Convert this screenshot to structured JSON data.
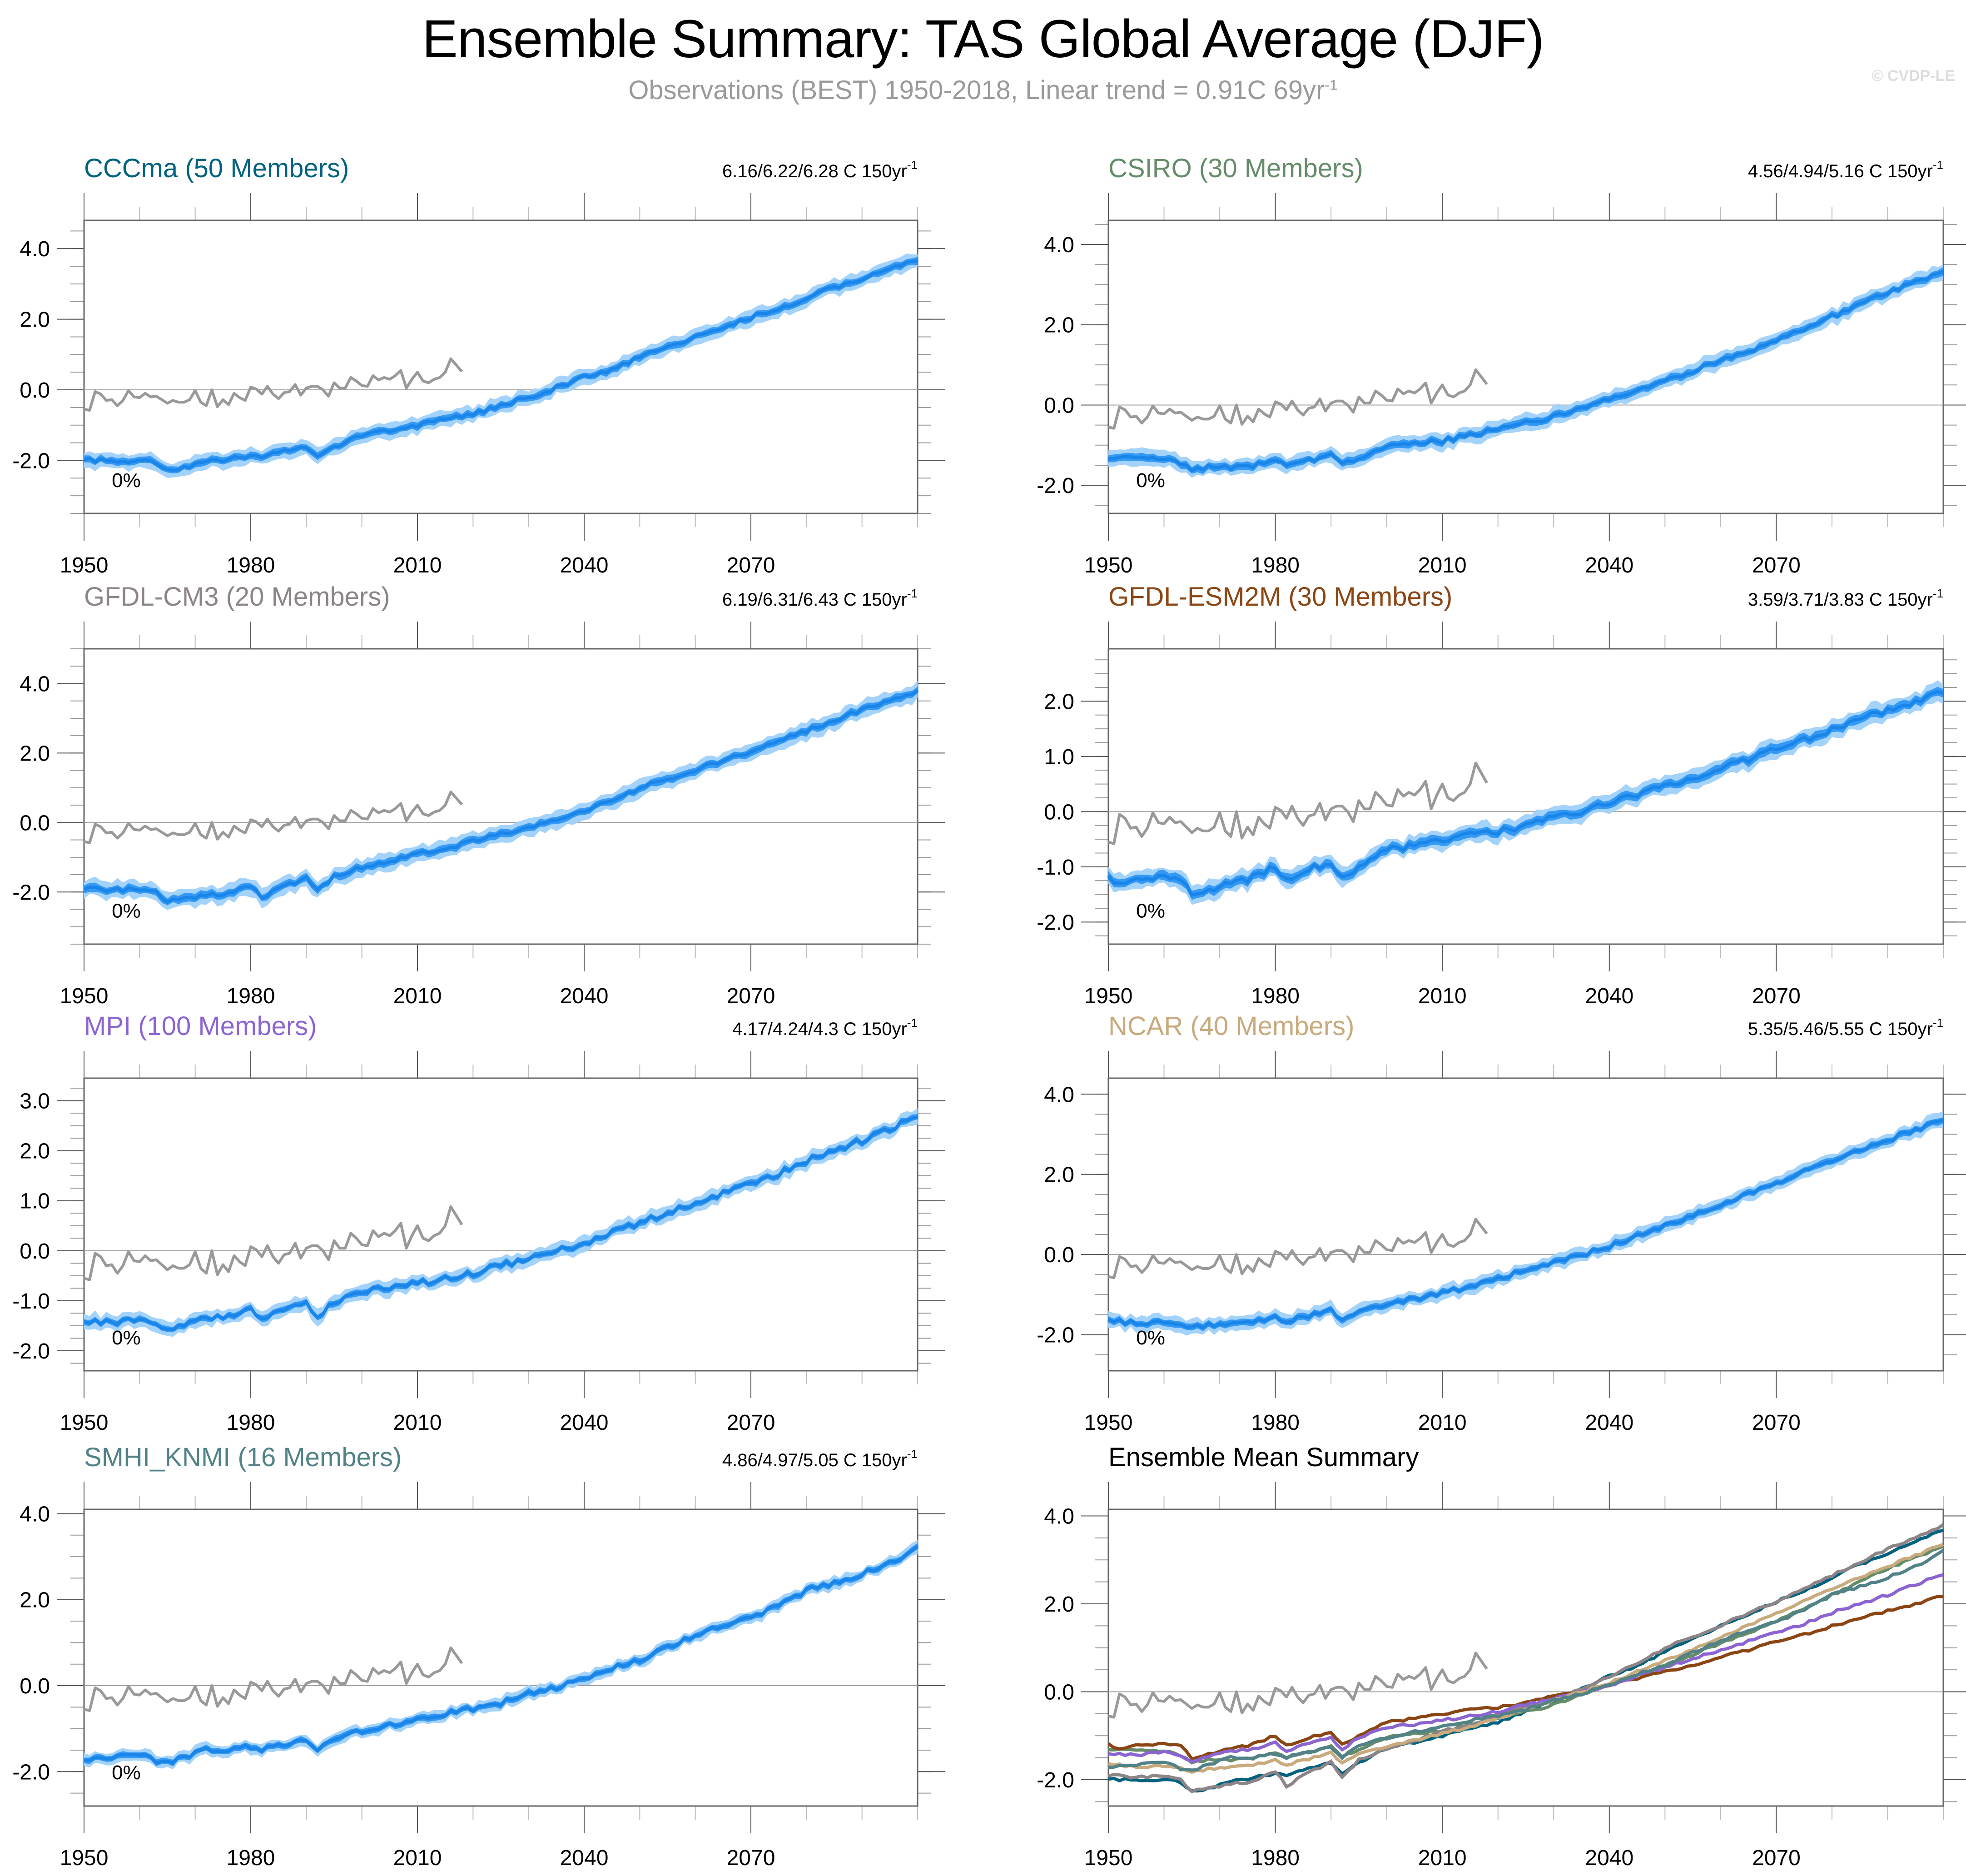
{
  "title": "Ensemble Summary: TAS Global Average (DJF)",
  "subtitle": {
    "text": "Observations (BEST) 1950-2018, Linear trend = 0.91C 69yr",
    "superscript": "-1"
  },
  "watermark": "© CVDP-LE",
  "colors": {
    "band_outer": "#a3d2fb",
    "band_inner": "#3399f5",
    "mean_line": "#1a85e8",
    "obs_line": "#999999",
    "zero_line": "#a0a0a0",
    "axis": "#666666"
  },
  "chart_data": [
    {
      "type": "line",
      "panel": "CCCma",
      "title": "CCCma (50 Members)",
      "title_color": "#00627e",
      "trend_label": "6.16/6.22/6.28 C 150yr",
      "trend_sup": "-1",
      "percent_label": "0%",
      "xlim": [
        1950,
        2100
      ],
      "ylim": [
        -3.5,
        4.8
      ],
      "yticks": [
        -2.0,
        0.0,
        2.0,
        4.0
      ],
      "ytick_labels": [
        "-2.0",
        "0.0",
        "2.0",
        "4.0"
      ],
      "xticks": [
        1950,
        1980,
        2010,
        2040,
        2070
      ],
      "xtick_labels": [
        "1950",
        "1980",
        "2010",
        "2040",
        "2070"
      ],
      "band_outer_halfwidth": 0.22,
      "band_inner_halfwidth": 0.1,
      "mean": {
        "x": [
          1950,
          1955,
          1960,
          1963,
          1965,
          1968,
          1972,
          1976,
          1980,
          1982,
          1985,
          1990,
          1992,
          1995,
          2000,
          2005,
          2010,
          2015,
          2020,
          2025,
          2030,
          2035,
          2040,
          2045,
          2050,
          2055,
          2060,
          2065,
          2070,
          2075,
          2080,
          2085,
          2090,
          2095,
          2100
        ],
        "y": [
          -2.0,
          -2.0,
          -2.0,
          -2.05,
          -2.25,
          -2.2,
          -2.05,
          -1.95,
          -1.85,
          -1.9,
          -1.8,
          -1.6,
          -1.85,
          -1.6,
          -1.3,
          -1.15,
          -1.0,
          -0.85,
          -0.7,
          -0.45,
          -0.2,
          0.05,
          0.35,
          0.6,
          0.9,
          1.2,
          1.5,
          1.75,
          2.05,
          2.3,
          2.6,
          2.9,
          3.15,
          3.4,
          3.7
        ]
      }
    },
    {
      "type": "line",
      "panel": "CSIRO",
      "title": "CSIRO (30 Members)",
      "title_color": "#648c69",
      "trend_label": "4.56/4.94/5.16 C 150yr",
      "trend_sup": "-1",
      "percent_label": "0%",
      "xlim": [
        1950,
        2100
      ],
      "ylim": [
        -2.7,
        4.6
      ],
      "yticks": [
        -2.0,
        0.0,
        2.0,
        4.0
      ],
      "ytick_labels": [
        "-2.0",
        "0.0",
        "2.0",
        "4.0"
      ],
      "xticks": [
        1950,
        1980,
        2010,
        2040,
        2070
      ],
      "xtick_labels": [
        "1950",
        "1980",
        "2010",
        "2040",
        "2070"
      ],
      "band_outer_halfwidth": 0.2,
      "band_inner_halfwidth": 0.09,
      "mean": {
        "x": [
          1950,
          1955,
          1960,
          1963,
          1965,
          1968,
          1972,
          1976,
          1980,
          1982,
          1985,
          1990,
          1992,
          1995,
          2000,
          2005,
          2010,
          2015,
          2020,
          2025,
          2030,
          2035,
          2040,
          2045,
          2050,
          2055,
          2060,
          2065,
          2070,
          2075,
          2080,
          2085,
          2090,
          2095,
          2100
        ],
        "y": [
          -1.3,
          -1.35,
          -1.35,
          -1.45,
          -1.6,
          -1.55,
          -1.55,
          -1.5,
          -1.4,
          -1.5,
          -1.4,
          -1.25,
          -1.5,
          -1.3,
          -1.05,
          -0.95,
          -0.9,
          -0.75,
          -0.6,
          -0.45,
          -0.3,
          -0.05,
          0.15,
          0.4,
          0.6,
          0.85,
          1.1,
          1.35,
          1.6,
          1.9,
          2.2,
          2.5,
          2.8,
          3.05,
          3.3
        ]
      }
    },
    {
      "type": "line",
      "panel": "GFDL-CM3",
      "title": "GFDL-CM3 (20 Members)",
      "title_color": "#8c8487",
      "trend_label": "6.19/6.31/6.43 C 150yr",
      "trend_sup": "-1",
      "percent_label": "0%",
      "xlim": [
        1950,
        2100
      ],
      "ylim": [
        -3.5,
        5.0
      ],
      "yticks": [
        -2.0,
        0.0,
        2.0,
        4.0
      ],
      "ytick_labels": [
        "-2.0",
        "0.0",
        "2.0",
        "4.0"
      ],
      "xticks": [
        1950,
        1980,
        2010,
        2040,
        2070
      ],
      "xtick_labels": [
        "1950",
        "1980",
        "2010",
        "2040",
        "2070"
      ],
      "band_outer_halfwidth": 0.25,
      "band_inner_halfwidth": 0.11,
      "mean": {
        "x": [
          1950,
          1955,
          1960,
          1963,
          1965,
          1968,
          1972,
          1976,
          1980,
          1982,
          1985,
          1990,
          1992,
          1995,
          2000,
          2005,
          2010,
          2015,
          2020,
          2025,
          2030,
          2035,
          2040,
          2045,
          2050,
          2055,
          2060,
          2065,
          2070,
          2075,
          2080,
          2085,
          2090,
          2095,
          2100
        ],
        "y": [
          -1.9,
          -1.95,
          -1.9,
          -2.0,
          -2.25,
          -2.2,
          -2.1,
          -2.05,
          -1.8,
          -2.15,
          -1.9,
          -1.6,
          -1.95,
          -1.55,
          -1.3,
          -1.1,
          -0.9,
          -0.75,
          -0.55,
          -0.35,
          -0.15,
          0.05,
          0.35,
          0.65,
          1.0,
          1.25,
          1.5,
          1.8,
          2.05,
          2.35,
          2.65,
          2.95,
          3.25,
          3.5,
          3.8
        ]
      }
    },
    {
      "type": "line",
      "panel": "GFDL-ESM2M",
      "title": "GFDL-ESM2M (30 Members)",
      "title_color": "#8b4513",
      "trend_label": "3.59/3.71/3.83 C 150yr",
      "trend_sup": "-1",
      "percent_label": "0%",
      "xlim": [
        1950,
        2100
      ],
      "ylim": [
        -2.4,
        2.95
      ],
      "yticks": [
        -2.0,
        -1.0,
        0.0,
        1.0,
        2.0
      ],
      "ytick_labels": [
        "-2.0",
        "-1.0",
        "0.0",
        "1.0",
        "2.0"
      ],
      "xticks": [
        1950,
        1980,
        2010,
        2040,
        2070
      ],
      "xtick_labels": [
        "1950",
        "1980",
        "2010",
        "2040",
        "2070"
      ],
      "band_outer_halfwidth": 0.17,
      "band_inner_halfwidth": 0.08,
      "mean": {
        "x": [
          1950,
          1952,
          1955,
          1960,
          1963,
          1965,
          1968,
          1972,
          1976,
          1980,
          1982,
          1985,
          1990,
          1992,
          1995,
          2000,
          2005,
          2010,
          2015,
          2020,
          2025,
          2030,
          2035,
          2040,
          2045,
          2050,
          2055,
          2060,
          2065,
          2070,
          2075,
          2080,
          2085,
          2090,
          2095,
          2100
        ],
        "y": [
          -1.2,
          -1.3,
          -1.2,
          -1.2,
          -1.2,
          -1.55,
          -1.4,
          -1.3,
          -1.2,
          -1.0,
          -1.2,
          -1.1,
          -0.9,
          -1.2,
          -1.0,
          -0.7,
          -0.6,
          -0.5,
          -0.4,
          -0.35,
          -0.25,
          -0.1,
          0.0,
          0.15,
          0.3,
          0.45,
          0.6,
          0.8,
          0.95,
          1.15,
          1.3,
          1.5,
          1.65,
          1.85,
          2.0,
          2.2
        ]
      }
    },
    {
      "type": "line",
      "panel": "MPI",
      "title": "MPI (100 Members)",
      "title_color": "#8c64d2",
      "trend_label": "4.17/4.24/4.3 C 150yr",
      "trend_sup": "-1",
      "percent_label": "0%",
      "xlim": [
        1950,
        2100
      ],
      "ylim": [
        -2.4,
        3.45
      ],
      "yticks": [
        -2.0,
        -1.0,
        0.0,
        1.0,
        2.0,
        3.0
      ],
      "ytick_labels": [
        "-2.0",
        "-1.0",
        "0.0",
        "1.0",
        "2.0",
        "3.0"
      ],
      "xticks": [
        1950,
        1980,
        2010,
        2040,
        2070
      ],
      "xtick_labels": [
        "1950",
        "1980",
        "2010",
        "2040",
        "2070"
      ],
      "band_outer_halfwidth": 0.15,
      "band_inner_halfwidth": 0.06,
      "mean": {
        "x": [
          1950,
          1955,
          1960,
          1963,
          1965,
          1968,
          1972,
          1976,
          1980,
          1982,
          1985,
          1990,
          1992,
          1995,
          2000,
          2005,
          2010,
          2015,
          2020,
          2025,
          2030,
          2035,
          2040,
          2045,
          2050,
          2055,
          2060,
          2065,
          2070,
          2075,
          2080,
          2085,
          2090,
          2095,
          2100
        ],
        "y": [
          -1.4,
          -1.45,
          -1.35,
          -1.45,
          -1.6,
          -1.45,
          -1.35,
          -1.3,
          -1.15,
          -1.35,
          -1.2,
          -1.05,
          -1.3,
          -1.05,
          -0.8,
          -0.75,
          -0.65,
          -0.55,
          -0.45,
          -0.3,
          -0.15,
          0.0,
          0.15,
          0.35,
          0.55,
          0.75,
          0.95,
          1.15,
          1.35,
          1.55,
          1.8,
          2.0,
          2.2,
          2.45,
          2.65
        ]
      }
    },
    {
      "type": "line",
      "panel": "NCAR",
      "title": "NCAR (40 Members)",
      "title_color": "#c8aa7d",
      "trend_label": "5.35/5.46/5.55 C 150yr",
      "trend_sup": "-1",
      "percent_label": "0%",
      "xlim": [
        1950,
        2100
      ],
      "ylim": [
        -2.9,
        4.4
      ],
      "yticks": [
        -2.0,
        0.0,
        2.0,
        4.0
      ],
      "ytick_labels": [
        "-2.0",
        "0.0",
        "2.0",
        "4.0"
      ],
      "xticks": [
        1950,
        1980,
        2010,
        2040,
        2070
      ],
      "xtick_labels": [
        "1950",
        "1980",
        "2010",
        "2040",
        "2070"
      ],
      "band_outer_halfwidth": 0.18,
      "band_inner_halfwidth": 0.08,
      "mean": {
        "x": [
          1950,
          1955,
          1960,
          1963,
          1965,
          1968,
          1972,
          1976,
          1980,
          1982,
          1985,
          1990,
          1992,
          1995,
          2000,
          2005,
          2010,
          2015,
          2020,
          2025,
          2030,
          2035,
          2040,
          2045,
          2050,
          2055,
          2060,
          2065,
          2070,
          2075,
          2080,
          2085,
          2090,
          2095,
          2100
        ],
        "y": [
          -1.65,
          -1.7,
          -1.7,
          -1.7,
          -1.85,
          -1.75,
          -1.7,
          -1.65,
          -1.55,
          -1.65,
          -1.55,
          -1.4,
          -1.6,
          -1.4,
          -1.25,
          -1.1,
          -0.95,
          -0.8,
          -0.6,
          -0.4,
          -0.2,
          0.0,
          0.2,
          0.45,
          0.7,
          0.95,
          1.25,
          1.5,
          1.8,
          2.05,
          2.35,
          2.6,
          2.85,
          3.1,
          3.35
        ]
      }
    },
    {
      "type": "line",
      "panel": "SMHI_KNMI",
      "title": "SMHI_KNMI (16 Members)",
      "title_color": "#508287",
      "trend_label": "4.86/4.97/5.05 C 150yr",
      "trend_sup": "-1",
      "percent_label": "0%",
      "xlim": [
        1950,
        2100
      ],
      "ylim": [
        -2.8,
        4.1
      ],
      "yticks": [
        -2.0,
        0.0,
        2.0,
        4.0
      ],
      "ytick_labels": [
        "-2.0",
        "0.0",
        "2.0",
        "4.0"
      ],
      "xticks": [
        1950,
        1980,
        2010,
        2040,
        2070
      ],
      "xtick_labels": [
        "1950",
        "1980",
        "2010",
        "2040",
        "2070"
      ],
      "band_outer_halfwidth": 0.14,
      "band_inner_halfwidth": 0.07,
      "mean": {
        "x": [
          1950,
          1955,
          1960,
          1963,
          1965,
          1968,
          1972,
          1976,
          1980,
          1982,
          1985,
          1990,
          1992,
          1995,
          2000,
          2005,
          2010,
          2015,
          2020,
          2025,
          2030,
          2035,
          2040,
          2045,
          2050,
          2055,
          2060,
          2065,
          2070,
          2075,
          2080,
          2085,
          2090,
          2095,
          2100
        ],
        "y": [
          -1.7,
          -1.65,
          -1.6,
          -1.75,
          -1.8,
          -1.65,
          -1.5,
          -1.5,
          -1.4,
          -1.5,
          -1.4,
          -1.25,
          -1.5,
          -1.2,
          -1.05,
          -0.9,
          -0.8,
          -0.65,
          -0.55,
          -0.4,
          -0.2,
          -0.05,
          0.15,
          0.4,
          0.6,
          0.9,
          1.15,
          1.4,
          1.6,
          1.85,
          2.2,
          2.4,
          2.6,
          2.85,
          3.2
        ]
      }
    },
    {
      "type": "line",
      "panel": "Ensemble Mean Summary",
      "title": "Ensemble Mean Summary",
      "title_color": "#000000",
      "xlim": [
        1950,
        2100
      ],
      "ylim": [
        -2.6,
        4.15
      ],
      "yticks": [
        -2.0,
        0.0,
        2.0,
        4.0
      ],
      "ytick_labels": [
        "-2.0",
        "0.0",
        "2.0",
        "4.0"
      ],
      "xticks": [
        1950,
        1980,
        2010,
        2040,
        2070
      ],
      "xtick_labels": [
        "1950",
        "1980",
        "2010",
        "2040",
        "2070"
      ],
      "summary_series": [
        "CCCma",
        "CSIRO",
        "GFDL-CM3",
        "GFDL-ESM2M",
        "MPI",
        "NCAR",
        "SMHI_KNMI"
      ]
    }
  ],
  "observations": {
    "name": "Observations (BEST)",
    "x": [
      1950,
      1951,
      1952,
      1953,
      1954,
      1955,
      1956,
      1957,
      1958,
      1959,
      1960,
      1961,
      1962,
      1963,
      1964,
      1965,
      1966,
      1967,
      1968,
      1969,
      1970,
      1971,
      1972,
      1973,
      1974,
      1975,
      1976,
      1977,
      1978,
      1979,
      1980,
      1981,
      1982,
      1983,
      1984,
      1985,
      1986,
      1987,
      1988,
      1989,
      1990,
      1991,
      1992,
      1993,
      1994,
      1995,
      1996,
      1997,
      1998,
      1999,
      2000,
      2001,
      2002,
      2003,
      2004,
      2005,
      2006,
      2007,
      2008,
      2009,
      2010,
      2011,
      2012,
      2013,
      2014,
      2015,
      2016,
      2017,
      2018
    ],
    "y": [
      -0.55,
      -0.58,
      -0.05,
      -0.12,
      -0.3,
      -0.28,
      -0.45,
      -0.3,
      -0.02,
      -0.2,
      -0.22,
      -0.1,
      -0.2,
      -0.18,
      -0.28,
      -0.38,
      -0.3,
      -0.35,
      -0.35,
      -0.28,
      -0.02,
      -0.35,
      -0.45,
      0.0,
      -0.48,
      -0.28,
      -0.42,
      -0.1,
      -0.22,
      -0.3,
      0.08,
      0.02,
      -0.12,
      0.1,
      -0.12,
      -0.25,
      -0.08,
      -0.05,
      0.15,
      -0.15,
      0.05,
      0.1,
      0.1,
      0.0,
      -0.18,
      0.2,
      0.05,
      0.05,
      0.35,
      0.25,
      0.12,
      0.1,
      0.4,
      0.28,
      0.35,
      0.3,
      0.4,
      0.55,
      0.05,
      0.3,
      0.5,
      0.25,
      0.2,
      0.3,
      0.35,
      0.5,
      0.88,
      0.7,
      0.52
    ]
  }
}
